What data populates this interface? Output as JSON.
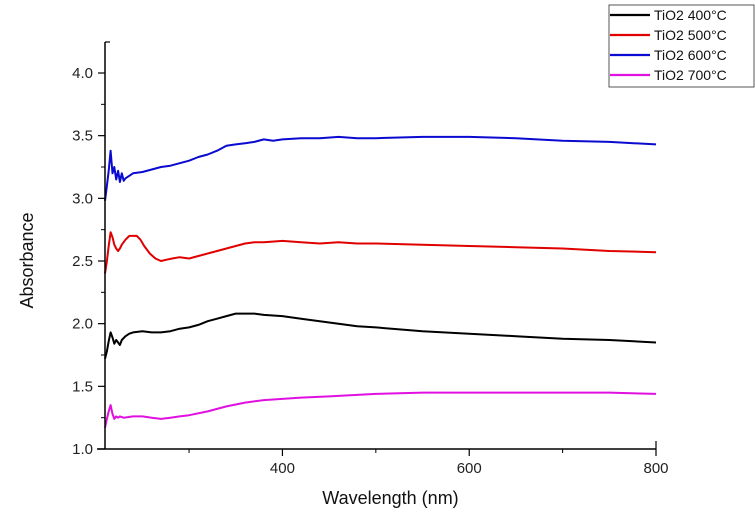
{
  "chart_data": {
    "type": "line",
    "title": "",
    "xlabel": "Wavelength (nm)",
    "ylabel": "Absorbance",
    "xlim": [
      210,
      800
    ],
    "ylim": [
      1.0,
      4.25
    ],
    "x_ticks": [
      400,
      600,
      800
    ],
    "x_tick_labels": [
      "400",
      "600",
      "800"
    ],
    "x_minor_ticks": [
      300,
      500,
      700
    ],
    "y_ticks": [
      1.0,
      1.5,
      2.0,
      2.5,
      3.0,
      3.5,
      4.0
    ],
    "y_tick_labels": [
      "1.0",
      "1.5",
      "2.0",
      "2.5",
      "3.0",
      "3.5",
      "4.0"
    ],
    "y_minor_ticks": [
      1.25,
      1.75,
      2.25,
      2.75,
      3.25,
      3.75
    ],
    "grid": false,
    "legend_position": "top-right",
    "series": [
      {
        "name": "TiO2 400°C",
        "color": "#000000",
        "x": [
          210,
          212,
          214,
          216,
          218,
          220,
          222,
          224,
          226,
          228,
          232,
          236,
          240,
          250,
          260,
          270,
          280,
          290,
          300,
          310,
          320,
          330,
          340,
          350,
          360,
          370,
          380,
          400,
          420,
          440,
          460,
          480,
          500,
          550,
          600,
          650,
          700,
          750,
          800
        ],
        "y": [
          1.72,
          1.78,
          1.86,
          1.93,
          1.89,
          1.84,
          1.87,
          1.85,
          1.83,
          1.87,
          1.9,
          1.92,
          1.93,
          1.94,
          1.93,
          1.93,
          1.94,
          1.96,
          1.97,
          1.99,
          2.02,
          2.04,
          2.06,
          2.08,
          2.08,
          2.08,
          2.07,
          2.06,
          2.04,
          2.02,
          2.0,
          1.98,
          1.97,
          1.94,
          1.92,
          1.9,
          1.88,
          1.87,
          1.85
        ]
      },
      {
        "name": "TiO2 500°C",
        "color": "#e00000",
        "x": [
          210,
          212,
          214,
          216,
          218,
          220,
          222,
          224,
          226,
          228,
          232,
          236,
          240,
          244,
          248,
          252,
          258,
          264,
          270,
          276,
          282,
          290,
          300,
          310,
          320,
          330,
          340,
          350,
          360,
          370,
          380,
          400,
          420,
          440,
          460,
          480,
          500,
          550,
          600,
          650,
          700,
          750,
          800
        ],
        "y": [
          2.4,
          2.5,
          2.62,
          2.73,
          2.69,
          2.63,
          2.6,
          2.58,
          2.6,
          2.63,
          2.67,
          2.7,
          2.7,
          2.7,
          2.67,
          2.62,
          2.56,
          2.52,
          2.5,
          2.51,
          2.52,
          2.53,
          2.52,
          2.54,
          2.56,
          2.58,
          2.6,
          2.62,
          2.64,
          2.65,
          2.65,
          2.66,
          2.65,
          2.64,
          2.65,
          2.64,
          2.64,
          2.63,
          2.62,
          2.61,
          2.6,
          2.58,
          2.57
        ]
      },
      {
        "name": "TiO2 600°C",
        "color": "#0a0ad0",
        "x": [
          210,
          212,
          214,
          216,
          218,
          220,
          222,
          224,
          226,
          228,
          230,
          232,
          236,
          240,
          250,
          260,
          270,
          280,
          290,
          300,
          310,
          320,
          330,
          340,
          350,
          360,
          370,
          380,
          390,
          400,
          420,
          440,
          460,
          480,
          500,
          550,
          600,
          650,
          700,
          750,
          800
        ],
        "y": [
          2.98,
          3.1,
          3.22,
          3.38,
          3.2,
          3.25,
          3.15,
          3.22,
          3.13,
          3.2,
          3.14,
          3.16,
          3.18,
          3.2,
          3.21,
          3.23,
          3.25,
          3.26,
          3.28,
          3.3,
          3.33,
          3.35,
          3.38,
          3.42,
          3.43,
          3.44,
          3.45,
          3.47,
          3.46,
          3.47,
          3.48,
          3.48,
          3.49,
          3.48,
          3.48,
          3.49,
          3.49,
          3.48,
          3.46,
          3.45,
          3.43
        ]
      },
      {
        "name": "TiO2 700°C",
        "color": "#e010e0",
        "x": [
          210,
          212,
          214,
          216,
          218,
          220,
          222,
          224,
          226,
          230,
          240,
          250,
          260,
          270,
          280,
          290,
          300,
          320,
          340,
          360,
          380,
          400,
          420,
          450,
          500,
          550,
          600,
          650,
          700,
          750,
          800
        ],
        "y": [
          1.17,
          1.24,
          1.3,
          1.35,
          1.28,
          1.24,
          1.26,
          1.25,
          1.26,
          1.25,
          1.26,
          1.26,
          1.25,
          1.24,
          1.25,
          1.26,
          1.27,
          1.3,
          1.34,
          1.37,
          1.39,
          1.4,
          1.41,
          1.42,
          1.44,
          1.45,
          1.45,
          1.45,
          1.45,
          1.45,
          1.44
        ]
      }
    ]
  }
}
